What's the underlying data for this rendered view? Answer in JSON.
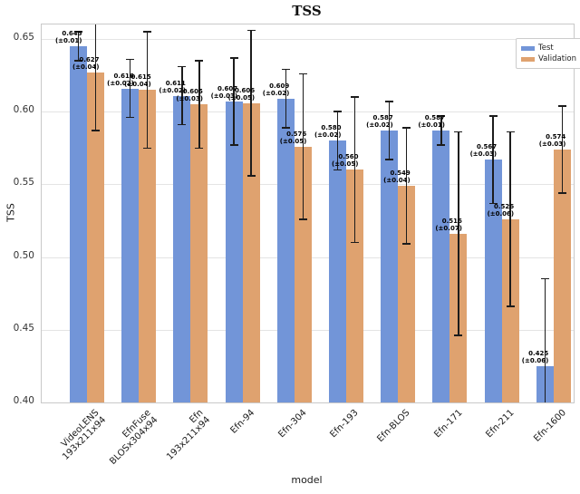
{
  "figure": {
    "title": "TSS"
  },
  "axes": {
    "xlabel": "model",
    "ylabel": "TSS"
  },
  "legend": {
    "items": [
      {
        "label": "Test",
        "color": "#7295d8"
      },
      {
        "label": "Validation",
        "color": "#dfa26f"
      }
    ]
  },
  "chart_data": {
    "type": "bar",
    "title": "TSS",
    "xlabel": "model",
    "ylabel": "TSS",
    "ylim": [
      0.4,
      0.66
    ],
    "yticks": [
      0.65,
      0.6,
      0.55,
      0.5,
      0.45,
      0.4
    ],
    "grid": "horizontal",
    "legend_position": "upper right",
    "bar_value_label_format": "value (±error)",
    "categories": [
      [
        "VideoLENS",
        "193x211x94"
      ],
      [
        "EfnFuse",
        "BLOSx304x94"
      ],
      [
        "Efn",
        "193x211x94"
      ],
      [
        "Efn-94"
      ],
      [
        "Efn-304"
      ],
      [
        "Efn-193"
      ],
      [
        "Efn-BLOS"
      ],
      [
        "Efn-171"
      ],
      [
        "Efn-211"
      ],
      [
        "Efn-1600"
      ]
    ],
    "series": [
      {
        "name": "Test",
        "color": "#7295d8",
        "values": [
          0.645,
          0.616,
          0.611,
          0.607,
          0.609,
          0.58,
          0.587,
          0.587,
          0.567,
          0.425
        ],
        "errors": [
          0.01,
          0.02,
          0.02,
          0.03,
          0.02,
          0.02,
          0.02,
          0.01,
          0.03,
          0.06
        ]
      },
      {
        "name": "Validation",
        "color": "#dfa26f",
        "values": [
          0.627,
          0.615,
          0.605,
          0.606,
          0.576,
          0.56,
          0.549,
          0.516,
          0.526,
          0.574
        ],
        "errors": [
          0.04,
          0.04,
          0.03,
          0.05,
          0.05,
          0.05,
          0.04,
          0.07,
          0.06,
          0.03
        ]
      }
    ]
  }
}
